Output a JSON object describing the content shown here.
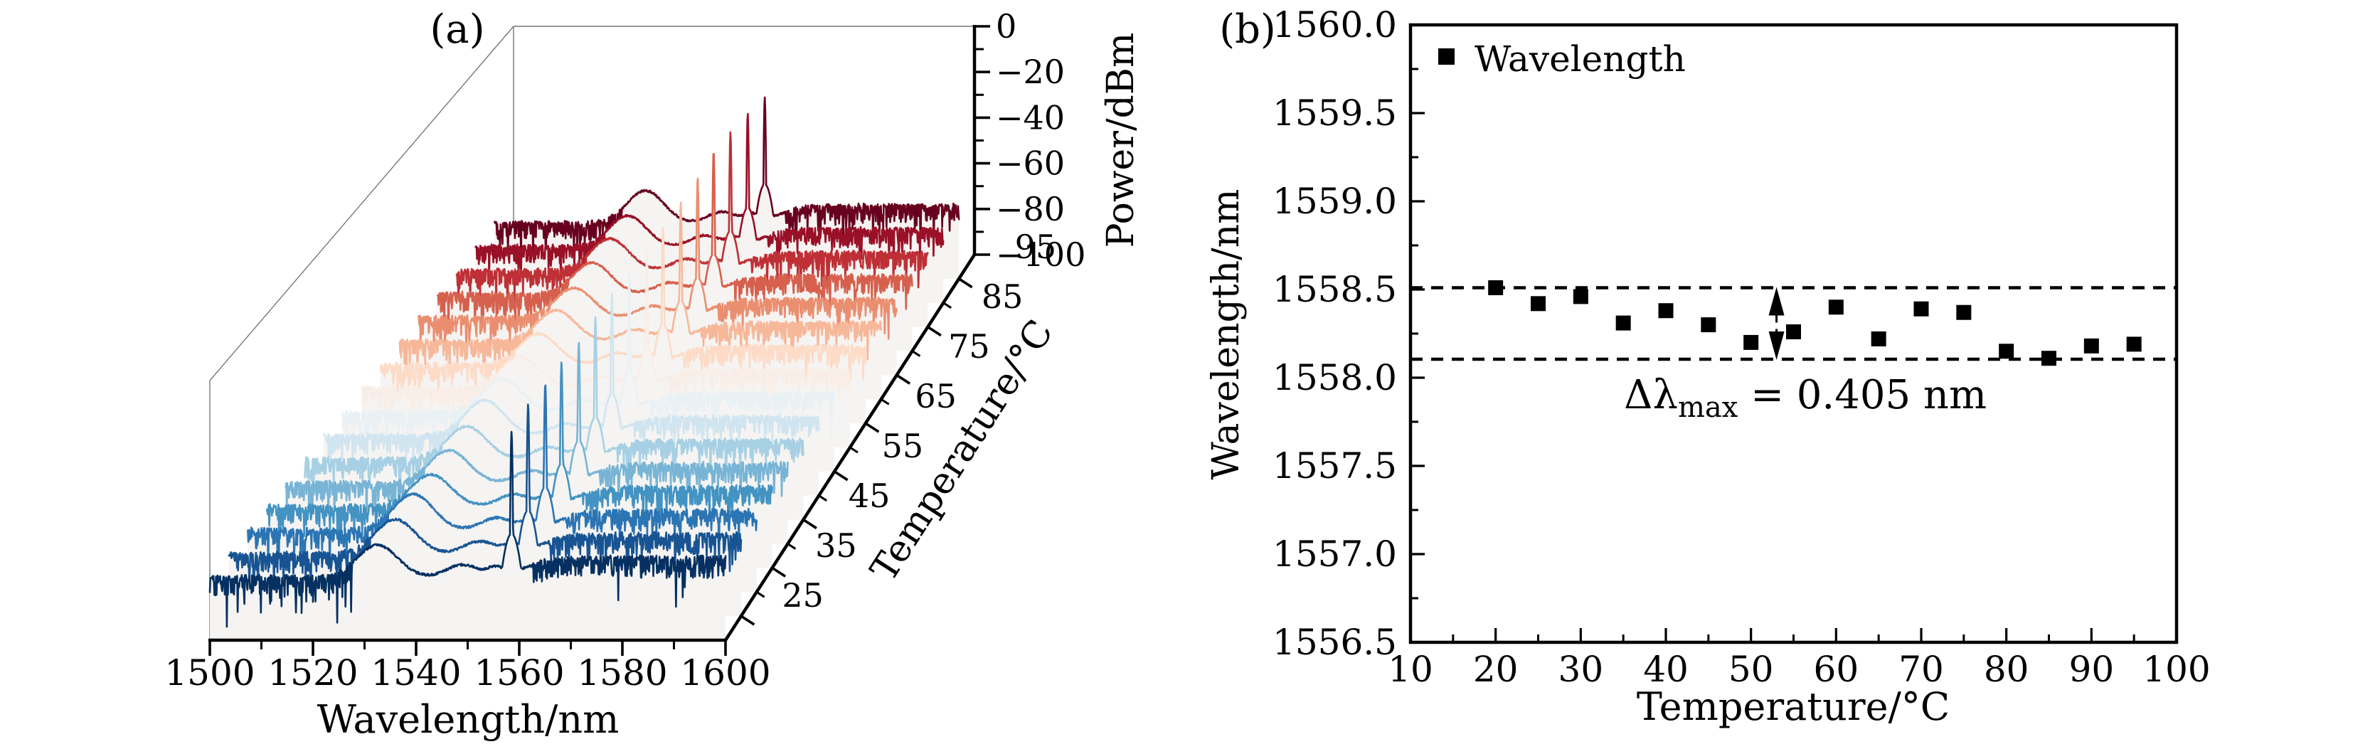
{
  "panel_a": {
    "label": "(a)",
    "xlabel": "Wavelength/nm",
    "power_label": "Power/dBm",
    "temp_label": "Temperature/°C"
  },
  "panel_b": {
    "label": "(b)",
    "xlabel": "Temperature/°C",
    "ylabel": "Wavelength/nm",
    "legend_label": "Wavelength",
    "annotation": {
      "prefix": "Δλ",
      "sub": "max",
      "suffix": " = 0.405 nm"
    }
  },
  "chart_data": [
    {
      "panel": "a",
      "type": "line",
      "subtype": "3d-waterfall-optical-spectra",
      "xlabel": "Wavelength/nm",
      "ylabel": "Power/dBm",
      "zlabel": "Temperature/°C",
      "xlim": [
        1500,
        1600
      ],
      "power_lim": [
        -100,
        0
      ],
      "temp_axis_lim": [
        20,
        100
      ],
      "x_major_ticks": [
        1500,
        1520,
        1540,
        1560,
        1580,
        1600
      ],
      "x_minor_ticks": [
        1510,
        1530,
        1550,
        1570,
        1590
      ],
      "power_major_ticks": [
        0,
        -20,
        -40,
        -60,
        -80,
        -100
      ],
      "power_major_tick_labels": [
        "0",
        "−20",
        "−40",
        "−60",
        "−80",
        "−100"
      ],
      "power_minor_ticks": [
        -10,
        -30,
        -50,
        -70,
        -90
      ],
      "temp_major_ticks": [
        25,
        35,
        45,
        55,
        65,
        75,
        85,
        95
      ],
      "temp_minor_ticks": [
        30,
        40,
        50,
        60,
        70,
        80,
        90
      ],
      "series_temperatures_c": [
        20,
        25,
        30,
        35,
        40,
        45,
        50,
        55,
        60,
        65,
        70,
        75,
        80,
        85,
        90,
        95
      ],
      "peak_wavelengths_nm": [
        1558.51,
        1558.42,
        1558.46,
        1558.31,
        1558.38,
        1558.3,
        1558.2,
        1558.26,
        1558.4,
        1558.22,
        1558.39,
        1558.37,
        1558.15,
        1558.11,
        1558.18,
        1558.19
      ],
      "peak_powers_dbm": [
        -19.7,
        -17.7,
        -18.5,
        -19.0,
        -20.0,
        -19.0,
        -18.5,
        -19.5,
        -20.0,
        -19.0,
        -18.0,
        -17.1,
        -15.5,
        -16.8,
        -18.5,
        -21.2
      ],
      "noise_floor_dbm": -76,
      "ase_hump_center_nm": 1532.5,
      "ase_hump_peak_dbm": -63,
      "colormap_rdbu_anchors": [
        "#053061",
        "#2166ac",
        "#4393c3",
        "#92c5de",
        "#d1e5f0",
        "#f7f7f7",
        "#fddbc7",
        "#f4a582",
        "#d6604d",
        "#b2182b",
        "#67001f"
      ],
      "curve_fill_color": "#f5f4f2",
      "wireframe_color": "#777777",
      "grid": false,
      "legend": "none"
    },
    {
      "panel": "b",
      "type": "scatter",
      "marker": "filled-square",
      "marker_color": "#000000",
      "xlabel": "Temperature/°C",
      "ylabel": "Wavelength/nm",
      "xlim": [
        10,
        100
      ],
      "ylim": [
        1556.5,
        1560.0
      ],
      "x_major_ticks": [
        10,
        20,
        30,
        40,
        50,
        60,
        70,
        80,
        90,
        100
      ],
      "x_minor_ticks": [
        15,
        25,
        35,
        45,
        55,
        65,
        75,
        85,
        95
      ],
      "y_major_ticks": [
        1556.5,
        1557.0,
        1557.5,
        1558.0,
        1558.5,
        1559.0,
        1559.5,
        1560.0
      ],
      "y_minor_ticks": [
        1556.75,
        1557.25,
        1557.75,
        1558.25,
        1558.75,
        1559.25,
        1559.75
      ],
      "legend_entries": [
        "Wavelength"
      ],
      "legend_position": "upper-left-inside",
      "x": [
        20,
        25,
        30,
        35,
        40,
        45,
        50,
        55,
        60,
        65,
        70,
        75,
        80,
        85,
        90,
        95
      ],
      "y": [
        1558.51,
        1558.42,
        1558.46,
        1558.31,
        1558.38,
        1558.3,
        1558.2,
        1558.26,
        1558.4,
        1558.22,
        1558.39,
        1558.37,
        1558.15,
        1558.11,
        1558.18,
        1558.19
      ],
      "dashed_hlines_nm": [
        1558.51,
        1558.105
      ],
      "delta_lambda_max_nm": 0.405,
      "annotation_text": "Δλmax = 0.405 nm",
      "annotation_arrow_temp_c": 53,
      "grid": false
    }
  ]
}
